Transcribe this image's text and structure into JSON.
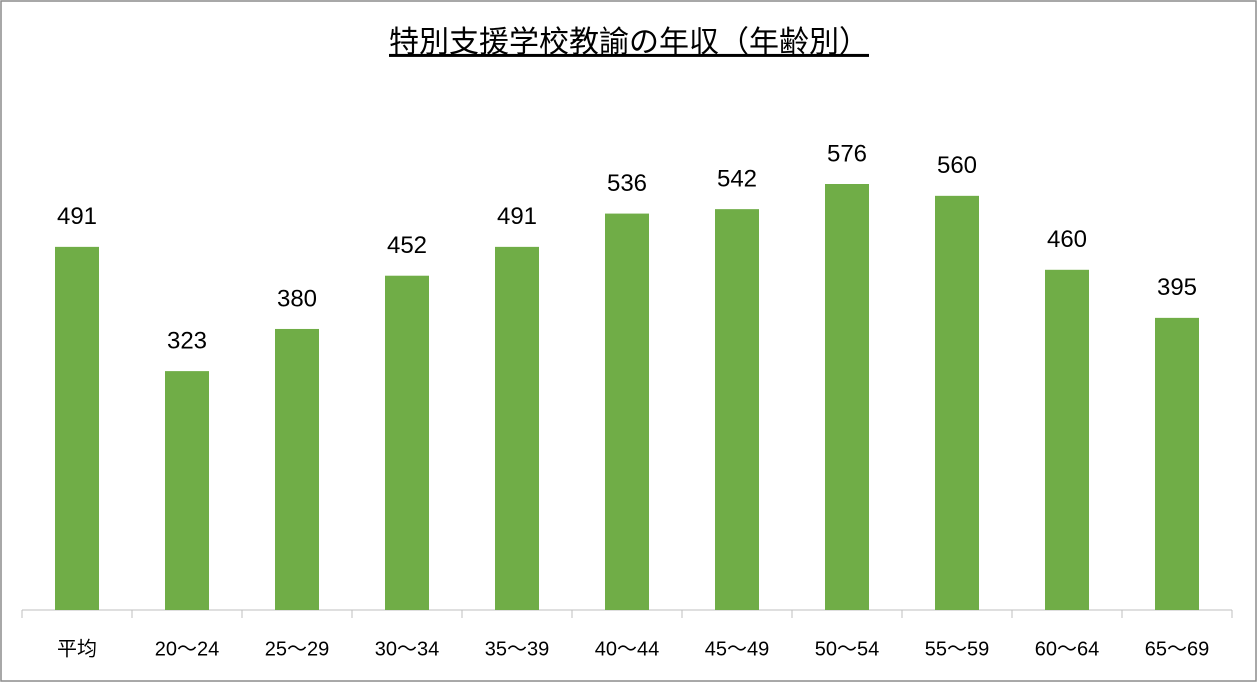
{
  "chart_data": {
    "type": "bar",
    "title": "特別支援学校教諭の年収（年齢別）",
    "categories": [
      "平均",
      "20〜24",
      "25〜29",
      "30〜34",
      "35〜39",
      "40〜44",
      "45〜49",
      "50〜54",
      "55〜59",
      "60〜64",
      "65〜69"
    ],
    "values": [
      491,
      323,
      380,
      452,
      491,
      536,
      542,
      576,
      560,
      460,
      395
    ],
    "color": "#70ad47"
  }
}
